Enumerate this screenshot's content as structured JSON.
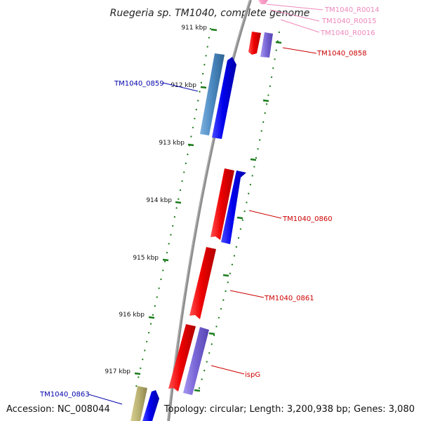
{
  "title": "Ruegeria sp. TM1040, complete genome",
  "accession": "Accession: NC_008044",
  "topology": "Topology: circular; Length: 3,200,938 bp; Genes: 3,080",
  "colors": {
    "backbone": "#8c8c8c",
    "tick": "#1a7a1a",
    "forward": "#ee0000",
    "forward_label": "#cc0000",
    "reverse": "#0000ee",
    "reverse_label": "#0000aa",
    "purple": "#7b68d8",
    "steelblue": "#4a88c0",
    "khaki": "#b8b070",
    "rna": "#ee88bb"
  },
  "ticks": [
    {
      "label": "911 kbp"
    },
    {
      "label": "912 kbp"
    },
    {
      "label": "913 kbp"
    },
    {
      "label": "914 kbp"
    },
    {
      "label": "915 kbp"
    },
    {
      "label": "916 kbp"
    },
    {
      "label": "917 kbp"
    }
  ],
  "labels": [
    {
      "text": "TM1040_R0014",
      "color": "#ee88bb"
    },
    {
      "text": "TM1040_R0015",
      "color": "#ee88bb"
    },
    {
      "text": "TM1040_R0016",
      "color": "#ee88bb"
    },
    {
      "text": "TM1040_0858",
      "color": "#cc0000"
    },
    {
      "text": "TM1040_0859",
      "color": "#0000aa"
    },
    {
      "text": "TM1040_0860",
      "color": "#cc0000"
    },
    {
      "text": "TM1040_0861",
      "color": "#cc0000"
    },
    {
      "text": "ispG",
      "color": "#cc0000"
    },
    {
      "text": "TM1040_0863",
      "color": "#0000aa"
    }
  ]
}
